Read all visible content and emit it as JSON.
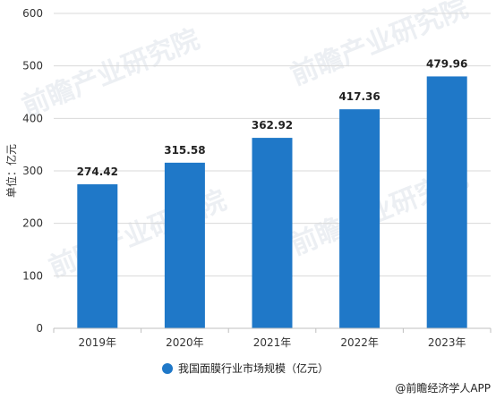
{
  "chart_data": {
    "type": "bar",
    "title": "",
    "xlabel": "",
    "ylabel": "单位：亿元",
    "categories": [
      "2019年",
      "2020年",
      "2021年",
      "2022年",
      "2023年"
    ],
    "series": [
      {
        "name": "我国面膜行业市场规模（亿元）",
        "values": [
          274.42,
          315.58,
          362.92,
          417.36,
          479.96
        ]
      }
    ],
    "data_labels": [
      "274.42",
      "315.58",
      "362.92",
      "417.36",
      "479.96"
    ],
    "ylim": [
      0,
      600
    ],
    "yticks": [
      0,
      100,
      200,
      300,
      400,
      500,
      600
    ],
    "grid": true,
    "legend_position": "bottom-center",
    "bar_color": "#1f78c8"
  },
  "watermark": "前瞻产业研究院",
  "credit": "@前瞻经济学人APP"
}
